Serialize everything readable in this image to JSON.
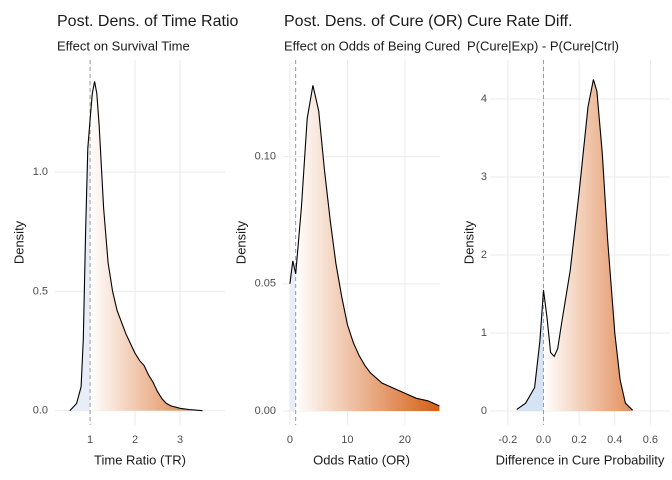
{
  "chart_data": [
    {
      "type": "density",
      "title": "Post. Dens. of Time Ratio",
      "subtitle": "Effect on Survival Time",
      "x_label": "Time Ratio (TR)",
      "y_label": "Density",
      "x": [
        0.55,
        0.7,
        0.8,
        0.85,
        0.9,
        0.95,
        1.0,
        1.05,
        1.1,
        1.15,
        1.2,
        1.3,
        1.4,
        1.5,
        1.6,
        1.7,
        1.8,
        1.9,
        2.0,
        2.1,
        2.2,
        2.3,
        2.4,
        2.5,
        2.6,
        2.7,
        2.8,
        3.0,
        3.2,
        3.5
      ],
      "values": [
        0.0,
        0.03,
        0.1,
        0.3,
        0.75,
        1.1,
        1.22,
        1.33,
        1.38,
        1.33,
        1.2,
        0.85,
        0.62,
        0.5,
        0.42,
        0.37,
        0.32,
        0.28,
        0.24,
        0.21,
        0.19,
        0.15,
        0.12,
        0.08,
        0.05,
        0.03,
        0.02,
        0.01,
        0.005,
        0.0
      ],
      "ref_line": 1,
      "fill_colors": [
        "#e8eef8",
        "#ffffff",
        "#d55e14"
      ],
      "xlim": [
        0.22,
        4.0
      ],
      "ylim": [
        -0.06,
        1.47
      ],
      "xticks": [
        1,
        2,
        3
      ],
      "yticks": [
        {
          "value": 0,
          "label": "0.0"
        },
        {
          "value": 0.5,
          "label": "0.5"
        },
        {
          "value": 1,
          "label": "1.0"
        }
      ],
      "grid": true
    },
    {
      "type": "density",
      "title": "Post. Dens. of Cure (OR)",
      "subtitle": "Effect on Odds of Being Cured",
      "x_label": "Odds Ratio (OR)",
      "y_label": "Density",
      "x": [
        0,
        0.5,
        1,
        2,
        3,
        4,
        5,
        6,
        7,
        8,
        9,
        10,
        11,
        12,
        13,
        14,
        15,
        16,
        18,
        20,
        22,
        24,
        26
      ],
      "values": [
        0.05,
        0.059,
        0.054,
        0.08,
        0.115,
        0.128,
        0.118,
        0.095,
        0.075,
        0.058,
        0.045,
        0.034,
        0.027,
        0.022,
        0.018,
        0.015,
        0.013,
        0.011,
        0.009,
        0.007,
        0.005,
        0.004,
        0.002
      ],
      "ref_line": 1,
      "fill_colors": [
        "#e8eef8",
        "#ffffff",
        "#d55e14"
      ],
      "xlim": [
        -1.2,
        26.1
      ],
      "ylim": [
        -0.0055,
        0.138
      ],
      "xticks": [
        0,
        10,
        20
      ],
      "yticks": [
        {
          "value": 0,
          "label": "0.00"
        },
        {
          "value": 0.05,
          "label": "0.05"
        },
        {
          "value": 0.1,
          "label": "0.10"
        }
      ],
      "grid": true
    },
    {
      "type": "density",
      "title": "Cure Rate Diff.",
      "subtitle": "P(Cure|Exp) - P(Cure|Ctrl)",
      "x_label": "Difference in Cure Probability",
      "y_label": "Density",
      "x": [
        -0.15,
        -0.1,
        -0.05,
        -0.02,
        0.0,
        0.02,
        0.04,
        0.06,
        0.08,
        0.1,
        0.15,
        0.2,
        0.25,
        0.28,
        0.3,
        0.33,
        0.36,
        0.4,
        0.43,
        0.46,
        0.5
      ],
      "values": [
        0.02,
        0.1,
        0.3,
        0.9,
        1.55,
        1.2,
        0.75,
        0.7,
        0.8,
        1.1,
        1.8,
        2.8,
        3.9,
        4.25,
        4.1,
        3.3,
        2.2,
        1.0,
        0.4,
        0.1,
        0.01
      ],
      "ref_line": 0,
      "fill_colors": [
        "#d6e3f5",
        "#ffffff",
        "#d55e14"
      ],
      "xlim": [
        -0.3,
        0.71
      ],
      "ylim": [
        -0.18,
        4.5
      ],
      "xticks": [
        -0.2,
        {
          "value": 0,
          "label": "0.0"
        },
        0.2,
        0.4,
        0.6
      ],
      "yticks": [
        0,
        1,
        2,
        3,
        4
      ],
      "grid": true
    }
  ]
}
